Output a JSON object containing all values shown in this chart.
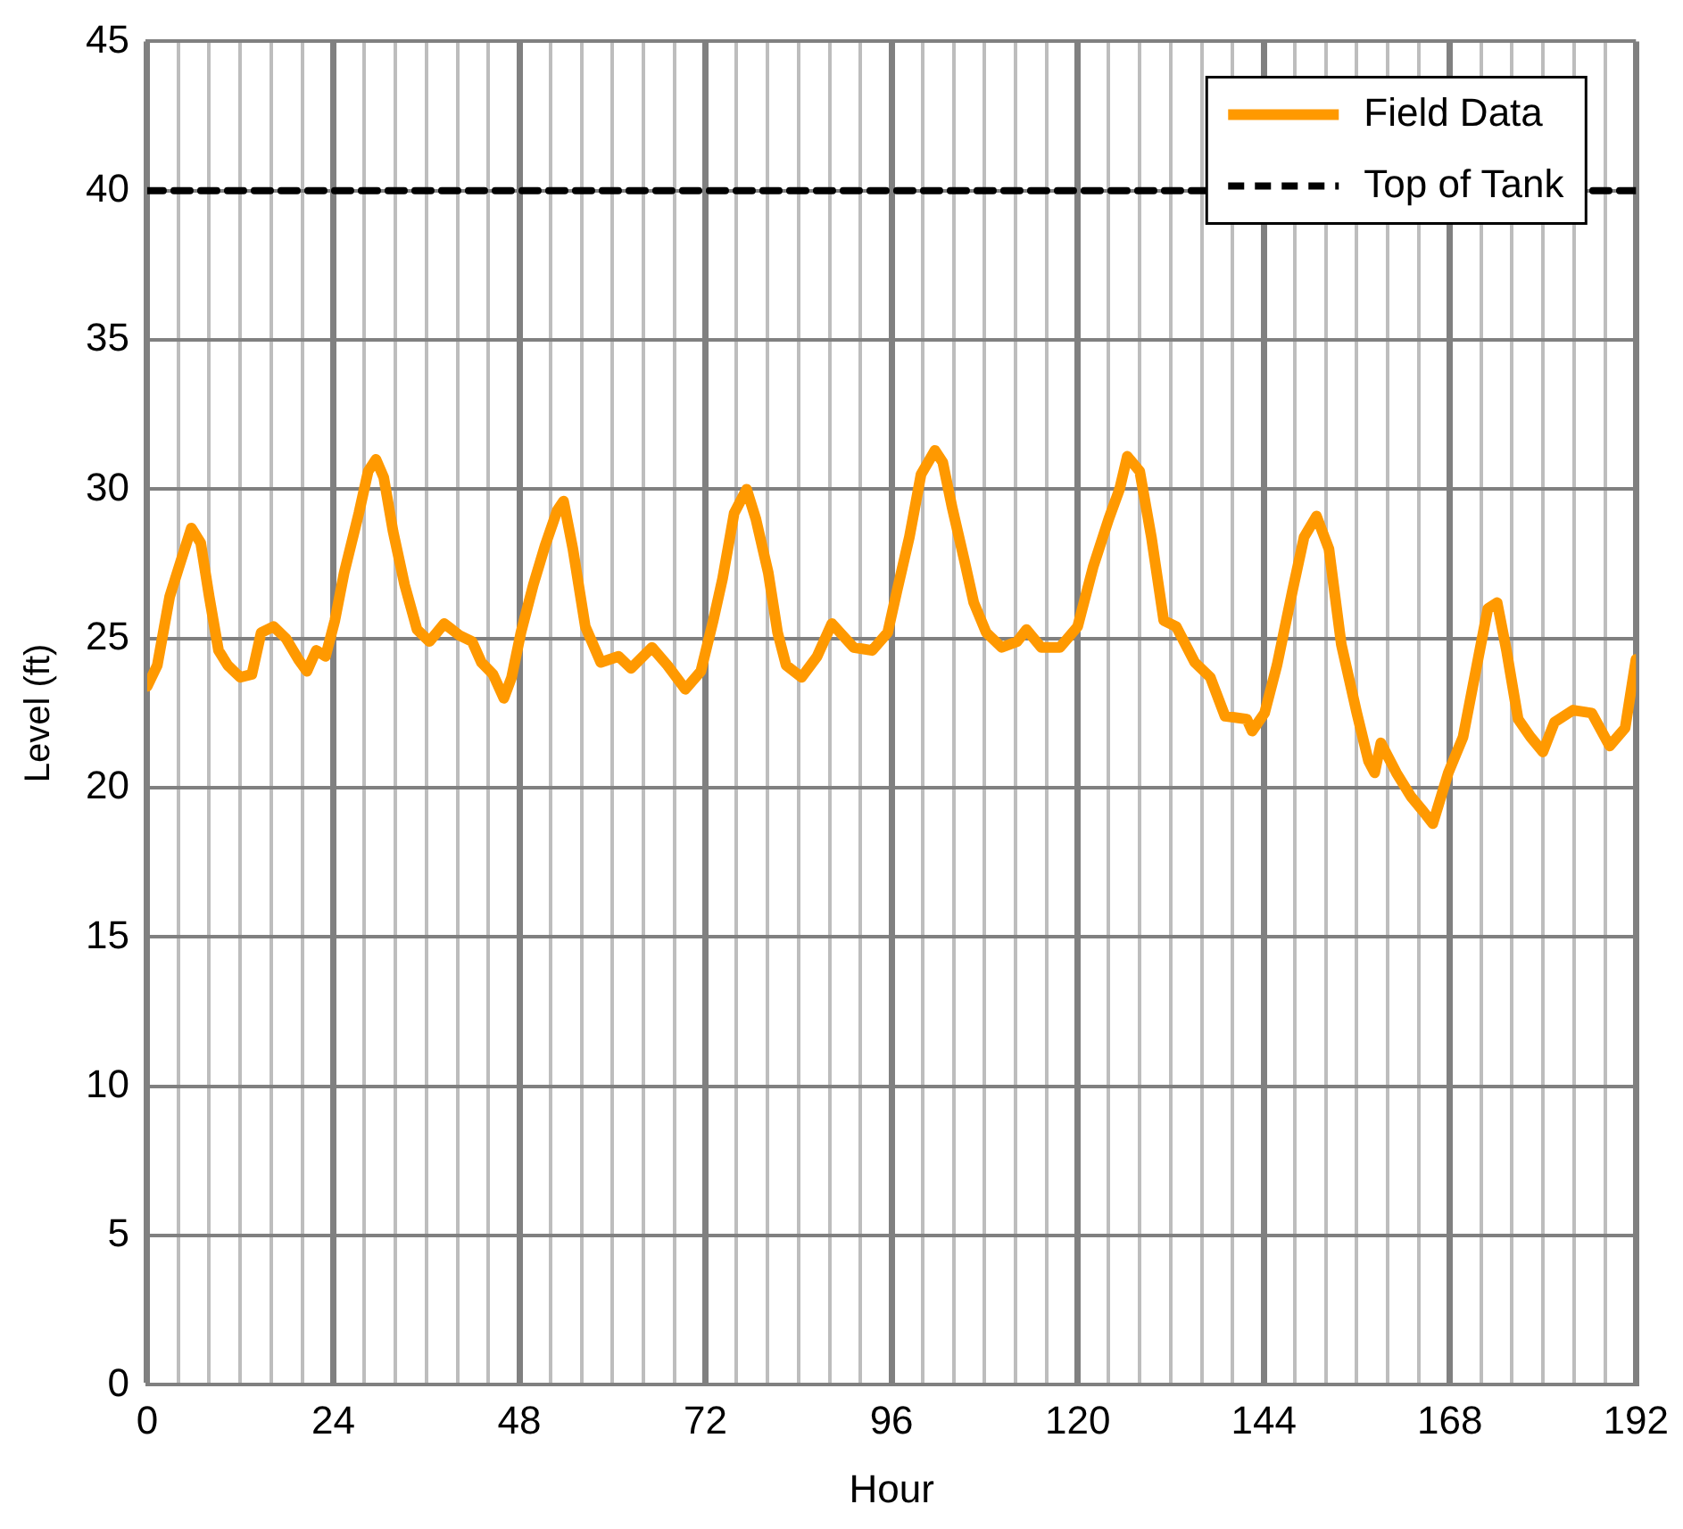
{
  "chart_data": {
    "type": "line",
    "xlabel": "Hour",
    "ylabel": "Level (ft)",
    "xlim": [
      0,
      192
    ],
    "ylim": [
      0,
      45
    ],
    "xticks": [
      0,
      {
        "value": 4,
        "label": null
      },
      {
        "value": 8,
        "label": null
      },
      {
        "value": 12,
        "label": null
      },
      {
        "value": 16,
        "label": null
      },
      {
        "value": 20,
        "label": null
      },
      24,
      {
        "value": 28,
        "label": null
      },
      {
        "value": 32,
        "label": null
      },
      {
        "value": 36,
        "label": null
      },
      {
        "value": 40,
        "label": null
      },
      {
        "value": 44,
        "label": null
      },
      48,
      {
        "value": 52,
        "label": null
      },
      {
        "value": 56,
        "label": null
      },
      {
        "value": 60,
        "label": null
      },
      {
        "value": 64,
        "label": null
      },
      {
        "value": 68,
        "label": null
      },
      72,
      {
        "value": 76,
        "label": null
      },
      {
        "value": 80,
        "label": null
      },
      {
        "value": 84,
        "label": null
      },
      {
        "value": 88,
        "label": null
      },
      {
        "value": 92,
        "label": null
      },
      96,
      {
        "value": 100,
        "label": null
      },
      {
        "value": 104,
        "label": null
      },
      {
        "value": 108,
        "label": null
      },
      {
        "value": 112,
        "label": null
      },
      {
        "value": 116,
        "label": null
      },
      120,
      {
        "value": 124,
        "label": null
      },
      {
        "value": 128,
        "label": null
      },
      {
        "value": 132,
        "label": null
      },
      {
        "value": 136,
        "label": null
      },
      {
        "value": 140,
        "label": null
      },
      144,
      {
        "value": 148,
        "label": null
      },
      {
        "value": 152,
        "label": null
      },
      {
        "value": 156,
        "label": null
      },
      {
        "value": 160,
        "label": null
      },
      {
        "value": 164,
        "label": null
      },
      168,
      {
        "value": 172,
        "label": null
      },
      {
        "value": 176,
        "label": null
      },
      {
        "value": 180,
        "label": null
      },
      {
        "value": 184,
        "label": null
      },
      {
        "value": 188,
        "label": null
      },
      192
    ],
    "yticks": [
      0,
      5,
      10,
      15,
      20,
      25,
      30,
      35,
      40,
      45
    ],
    "grid": true,
    "legend": "top right",
    "marker": "none",
    "series": [
      {
        "name": "Field Data",
        "color": "#ff9900",
        "line_style": "solid",
        "x": [
          0,
          1.3,
          2.9,
          4.1,
          5.7,
          6.9,
          8,
          9.2,
          10.4,
          12,
          13.5,
          14.7,
          16.3,
          17.9,
          19.5,
          20.6,
          21.8,
          23,
          24.2,
          25.4,
          27.3,
          28.5,
          29.5,
          30.5,
          31.7,
          33.2,
          34.8,
          36.4,
          38.3,
          40.3,
          41.9,
          43.1,
          44.6,
          46,
          47,
          48.2,
          49.8,
          51.3,
          52.9,
          53.7,
          54.9,
          56.5,
          58.5,
          60.8,
          62.4,
          65.1,
          67.1,
          69.4,
          71.4,
          73,
          74.2,
          75.7,
          77.3,
          78.5,
          80.1,
          81.3,
          82.4,
          84.4,
          86.4,
          88.3,
          91.1,
          93.5,
          95.5,
          96.7,
          98.3,
          99.8,
          101.6,
          102.6,
          103.8,
          105.4,
          106.6,
          108.2,
          110.2,
          112.2,
          113.4,
          115.3,
          117.7,
          120,
          122,
          124,
          125.4,
          126.4,
          128,
          129.5,
          131.1,
          132.7,
          135.1,
          137.1,
          139,
          141.8,
          142.5,
          144.1,
          145.7,
          147.7,
          149.2,
          150.8,
          152.4,
          154,
          156,
          157.5,
          158.3,
          159.1,
          161.1,
          163,
          164.6,
          165.8,
          167.8,
          169.7,
          171.7,
          172.9,
          174.1,
          175.3,
          176.8,
          178.4,
          180,
          181.5,
          183.9,
          186.3,
          188.6,
          190.6,
          192
        ],
        "values": [
          23.4,
          24.1,
          26.4,
          27.4,
          28.7,
          28.2,
          26.4,
          24.6,
          24.1,
          23.7,
          23.8,
          25.2,
          25.4,
          25.0,
          24.3,
          23.9,
          24.6,
          24.4,
          25.6,
          27.2,
          29.2,
          30.6,
          31.0,
          30.4,
          28.6,
          26.8,
          25.3,
          24.9,
          25.5,
          25.1,
          24.9,
          24.2,
          23.8,
          23.0,
          23.7,
          25.2,
          26.8,
          28.1,
          29.3,
          29.6,
          28.0,
          25.4,
          24.2,
          24.4,
          24.0,
          24.7,
          24.1,
          23.3,
          23.9,
          25.6,
          27.0,
          29.2,
          30.0,
          29.0,
          27.2,
          25.2,
          24.1,
          23.7,
          24.4,
          25.5,
          24.7,
          24.6,
          25.2,
          26.6,
          28.4,
          30.5,
          31.3,
          30.9,
          29.4,
          27.6,
          26.2,
          25.2,
          24.7,
          24.9,
          25.3,
          24.7,
          24.7,
          25.4,
          27.4,
          29.0,
          30.0,
          31.1,
          30.6,
          28.4,
          25.6,
          25.4,
          24.2,
          23.7,
          22.4,
          22.3,
          21.9,
          22.5,
          24.1,
          26.6,
          28.4,
          29.1,
          28.0,
          24.8,
          22.5,
          20.9,
          20.5,
          21.5,
          20.5,
          19.7,
          19.2,
          18.8,
          20.5,
          21.7,
          24.4,
          26.0,
          26.2,
          24.6,
          22.3,
          21.7,
          21.2,
          22.2,
          22.6,
          22.5,
          21.4,
          22.0,
          24.3
        ]
      },
      {
        "name": "Top of Tank",
        "color": "#000000",
        "line_style": "dashed",
        "x": [
          0,
          192
        ],
        "values": [
          40,
          40
        ]
      }
    ]
  }
}
